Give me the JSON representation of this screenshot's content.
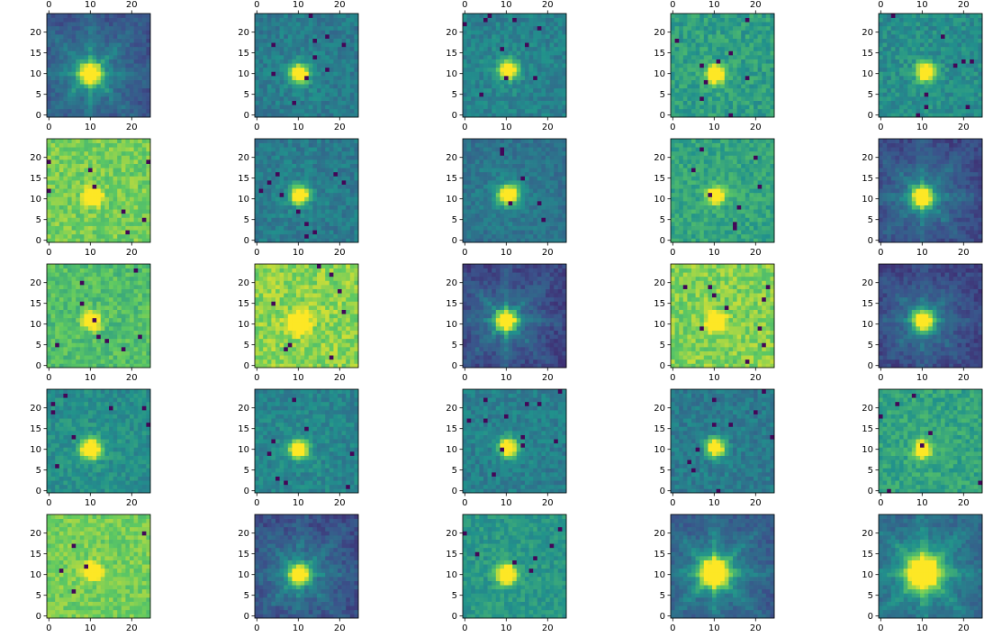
{
  "chart_data": {
    "type": "heatmap",
    "layout": {
      "rows": 5,
      "cols": 5
    },
    "colormap": "viridis",
    "colormap_stops": [
      "#440154",
      "#3b528b",
      "#21918c",
      "#5ec962",
      "#fde725"
    ],
    "panel": {
      "image_size": 25,
      "x_ticks": [
        0,
        10,
        20
      ],
      "y_ticks": [
        0,
        5,
        10,
        15,
        20
      ],
      "x_tick_labels": [
        "0",
        "10",
        "20"
      ],
      "y_tick_labels": [
        "0",
        "5",
        "10",
        "15",
        "20"
      ],
      "origin": "lower"
    },
    "panels": [
      {
        "cx": 10.5,
        "cy": 10.5,
        "peak": 1.0,
        "width": 1.6,
        "bg": 0.28,
        "halo": 0.35,
        "rays": 0.16,
        "noise": 0.06,
        "dark": 0,
        "seed": 1
      },
      {
        "cx": 10.8,
        "cy": 10.5,
        "peak": 1.0,
        "width": 1.4,
        "bg": 0.4,
        "halo": 0.1,
        "rays": 0.0,
        "noise": 0.08,
        "dark": 10,
        "seed": 2
      },
      {
        "cx": 11.0,
        "cy": 11.5,
        "peak": 1.0,
        "width": 1.4,
        "bg": 0.43,
        "halo": 0.08,
        "rays": 0.0,
        "noise": 0.08,
        "dark": 10,
        "seed": 3
      },
      {
        "cx": 10.8,
        "cy": 10.5,
        "peak": 0.98,
        "width": 1.4,
        "bg": 0.55,
        "halo": 0.05,
        "rays": 0.0,
        "noise": 0.1,
        "dark": 9,
        "seed": 4
      },
      {
        "cx": 11.2,
        "cy": 11.0,
        "peak": 0.98,
        "width": 1.4,
        "bg": 0.48,
        "halo": 0.05,
        "rays": 0.0,
        "noise": 0.09,
        "dark": 9,
        "seed": 5
      },
      {
        "cx": 11.2,
        "cy": 11.2,
        "peak": 0.98,
        "width": 1.3,
        "bg": 0.78,
        "halo": 0.0,
        "rays": 0.0,
        "noise": 0.1,
        "dark": 8,
        "seed": 6
      },
      {
        "cx": 10.8,
        "cy": 11.5,
        "peak": 1.0,
        "width": 1.4,
        "bg": 0.4,
        "halo": 0.1,
        "rays": 0.0,
        "noise": 0.08,
        "dark": 10,
        "seed": 7
      },
      {
        "cx": 11.0,
        "cy": 11.6,
        "peak": 1.0,
        "width": 1.5,
        "bg": 0.36,
        "halo": 0.14,
        "rays": 0.02,
        "noise": 0.07,
        "dark": 6,
        "seed": 8
      },
      {
        "cx": 11.0,
        "cy": 11.4,
        "peak": 0.95,
        "width": 1.3,
        "bg": 0.58,
        "halo": 0.04,
        "rays": 0.0,
        "noise": 0.09,
        "dark": 8,
        "seed": 9
      },
      {
        "cx": 10.5,
        "cy": 11.0,
        "peak": 1.0,
        "width": 1.6,
        "bg": 0.24,
        "halo": 0.32,
        "rays": 0.14,
        "noise": 0.06,
        "dark": 0,
        "seed": 10
      },
      {
        "cx": 10.8,
        "cy": 11.4,
        "peak": 0.95,
        "width": 1.3,
        "bg": 0.7,
        "halo": 0.0,
        "rays": 0.0,
        "noise": 0.1,
        "dark": 9,
        "seed": 11
      },
      {
        "cx": 10.6,
        "cy": 10.8,
        "peak": 1.0,
        "width": 1.5,
        "bg": 0.82,
        "halo": 0.0,
        "rays": 0.0,
        "noise": 0.11,
        "dark": 8,
        "seed": 12
      },
      {
        "cx": 10.5,
        "cy": 11.4,
        "peak": 1.0,
        "width": 1.6,
        "bg": 0.22,
        "halo": 0.3,
        "rays": 0.15,
        "noise": 0.06,
        "dark": 0,
        "seed": 13
      },
      {
        "cx": 11.0,
        "cy": 11.0,
        "peak": 0.96,
        "width": 1.3,
        "bg": 0.8,
        "halo": 0.0,
        "rays": 0.0,
        "noise": 0.11,
        "dark": 10,
        "seed": 14
      },
      {
        "cx": 10.8,
        "cy": 11.4,
        "peak": 1.0,
        "width": 1.6,
        "bg": 0.22,
        "halo": 0.32,
        "rays": 0.1,
        "noise": 0.06,
        "dark": 0,
        "seed": 15
      },
      {
        "cx": 10.6,
        "cy": 10.6,
        "peak": 1.0,
        "width": 1.5,
        "bg": 0.48,
        "halo": 0.08,
        "rays": 0.0,
        "noise": 0.08,
        "dark": 8,
        "seed": 16
      },
      {
        "cx": 10.6,
        "cy": 10.6,
        "peak": 1.0,
        "width": 1.4,
        "bg": 0.44,
        "halo": 0.08,
        "rays": 0.0,
        "noise": 0.08,
        "dark": 8,
        "seed": 17
      },
      {
        "cx": 11.0,
        "cy": 11.0,
        "peak": 1.0,
        "width": 1.4,
        "bg": 0.42,
        "halo": 0.06,
        "rays": 0.0,
        "noise": 0.08,
        "dark": 12,
        "seed": 18
      },
      {
        "cx": 10.8,
        "cy": 11.0,
        "peak": 1.0,
        "width": 1.4,
        "bg": 0.4,
        "halo": 0.06,
        "rays": 0.0,
        "noise": 0.08,
        "dark": 10,
        "seed": 19
      },
      {
        "cx": 10.6,
        "cy": 10.6,
        "peak": 0.96,
        "width": 1.3,
        "bg": 0.58,
        "halo": 0.03,
        "rays": 0.0,
        "noise": 0.09,
        "dark": 7,
        "seed": 20
      },
      {
        "cx": 11.0,
        "cy": 11.4,
        "peak": 0.92,
        "width": 1.3,
        "bg": 0.78,
        "halo": 0.0,
        "rays": 0.0,
        "noise": 0.09,
        "dark": 5,
        "seed": 21
      },
      {
        "cx": 10.8,
        "cy": 10.6,
        "peak": 1.0,
        "width": 1.5,
        "bg": 0.26,
        "halo": 0.32,
        "rays": 0.12,
        "noise": 0.07,
        "dark": 0,
        "seed": 22
      },
      {
        "cx": 10.6,
        "cy": 10.6,
        "peak": 1.0,
        "width": 1.5,
        "bg": 0.52,
        "halo": 0.06,
        "rays": 0.0,
        "noise": 0.08,
        "dark": 7,
        "seed": 23
      },
      {
        "cx": 10.6,
        "cy": 11.0,
        "peak": 1.0,
        "width": 2.2,
        "bg": 0.3,
        "halo": 0.38,
        "rays": 0.18,
        "noise": 0.06,
        "dark": 0,
        "seed": 24
      },
      {
        "cx": 10.8,
        "cy": 11.0,
        "peak": 1.0,
        "width": 2.5,
        "bg": 0.35,
        "halo": 0.42,
        "rays": 0.2,
        "noise": 0.06,
        "dark": 0,
        "seed": 25
      }
    ]
  }
}
